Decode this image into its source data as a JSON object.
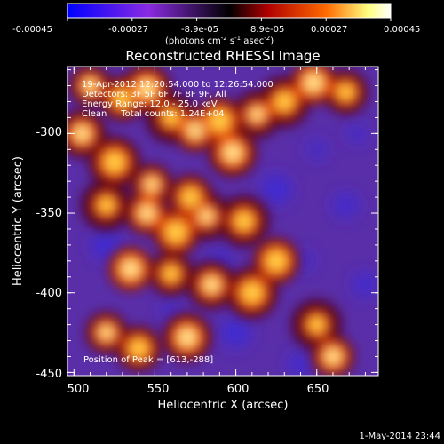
{
  "colorbar": {
    "ticks": [
      "-0.00045",
      "-0.00027",
      "-8.9e-05",
      "8.9e-05",
      "0.00027",
      "0.00045"
    ],
    "unit_label": "(photons cm",
    "unit_exp1": "-2",
    "unit_mid": " s",
    "unit_exp2": "-1",
    "unit_mid2": " asec",
    "unit_exp3": "-2",
    "unit_end": ")",
    "colors": [
      "#0000ff",
      "#8a2be2",
      "#000000",
      "#b00000",
      "#ff6a00",
      "#ffff80",
      "#ffffff"
    ]
  },
  "chart_data": {
    "type": "heatmap",
    "title": "Reconstructed RHESSI Image",
    "xlabel": "Heliocentric X (arcsec)",
    "ylabel": "Heliocentric Y (arcsec)",
    "xlim": [
      496,
      688
    ],
    "ylim": [
      -452,
      -258
    ],
    "xticks": [
      500,
      550,
      600,
      650
    ],
    "yticks": [
      -300,
      -350,
      -400,
      -450
    ],
    "annotations": [
      "19-Apr-2012 12:20:54.000 to 12:26:54.000",
      "Detectors: 3F 5F 6F 7F 8F 9F, All",
      "Energy Range: 12.0 - 25.0 keV",
      "Clean     Total counts: 1.24E+04"
    ],
    "peak_label": "Position of Peak = [613,-288]",
    "peak": [
      613,
      -288
    ],
    "bright_sources": [
      {
        "x": 510,
        "y": -270
      },
      {
        "x": 530,
        "y": -278
      },
      {
        "x": 545,
        "y": -272
      },
      {
        "x": 560,
        "y": -290
      },
      {
        "x": 575,
        "y": -298
      },
      {
        "x": 590,
        "y": -292
      },
      {
        "x": 613,
        "y": -288
      },
      {
        "x": 630,
        "y": -280
      },
      {
        "x": 648,
        "y": -268
      },
      {
        "x": 668,
        "y": -274
      },
      {
        "x": 505,
        "y": -300
      },
      {
        "x": 525,
        "y": -318
      },
      {
        "x": 548,
        "y": -332
      },
      {
        "x": 572,
        "y": -340
      },
      {
        "x": 598,
        "y": -312
      },
      {
        "x": 520,
        "y": -345
      },
      {
        "x": 545,
        "y": -350
      },
      {
        "x": 563,
        "y": -362
      },
      {
        "x": 582,
        "y": -352
      },
      {
        "x": 605,
        "y": -355
      },
      {
        "x": 535,
        "y": -385
      },
      {
        "x": 560,
        "y": -388
      },
      {
        "x": 585,
        "y": -395
      },
      {
        "x": 610,
        "y": -400
      },
      {
        "x": 520,
        "y": -425
      },
      {
        "x": 540,
        "y": -435
      },
      {
        "x": 570,
        "y": -428
      },
      {
        "x": 650,
        "y": -420
      },
      {
        "x": 660,
        "y": -440
      },
      {
        "x": 625,
        "y": -380
      }
    ]
  },
  "footer": {
    "timestamp": "1-May-2014 23:44"
  }
}
